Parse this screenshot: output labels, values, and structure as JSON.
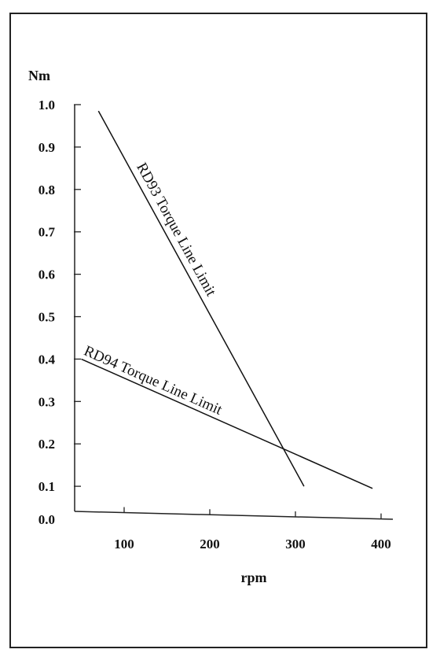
{
  "chart_data": {
    "type": "line",
    "ylabel": "Nm",
    "xlabel": "rpm",
    "xlim": [
      50,
      400
    ],
    "ylim": [
      0.0,
      1.0
    ],
    "xticks": [
      100,
      200,
      300,
      400
    ],
    "yticks": [
      0.0,
      0.1,
      0.2,
      0.3,
      0.4,
      0.5,
      0.6,
      0.7,
      0.8,
      0.9,
      1.0
    ],
    "ytick_labels": [
      "0.0",
      "0.1",
      "0.2",
      "0.3",
      "0.4",
      "0.5",
      "0.6",
      "0.7",
      "0.8",
      "0.9",
      "1.0"
    ],
    "xtick_labels": [
      "100",
      "200",
      "300",
      "400"
    ],
    "grid": false,
    "series": [
      {
        "name": "RD93 Torque Line Limit",
        "x": [
          70,
          310
        ],
        "y": [
          0.985,
          0.1
        ]
      },
      {
        "name": "RD94 Torque Line Limit",
        "x": [
          50,
          390
        ],
        "y": [
          0.4,
          0.095
        ]
      }
    ]
  }
}
